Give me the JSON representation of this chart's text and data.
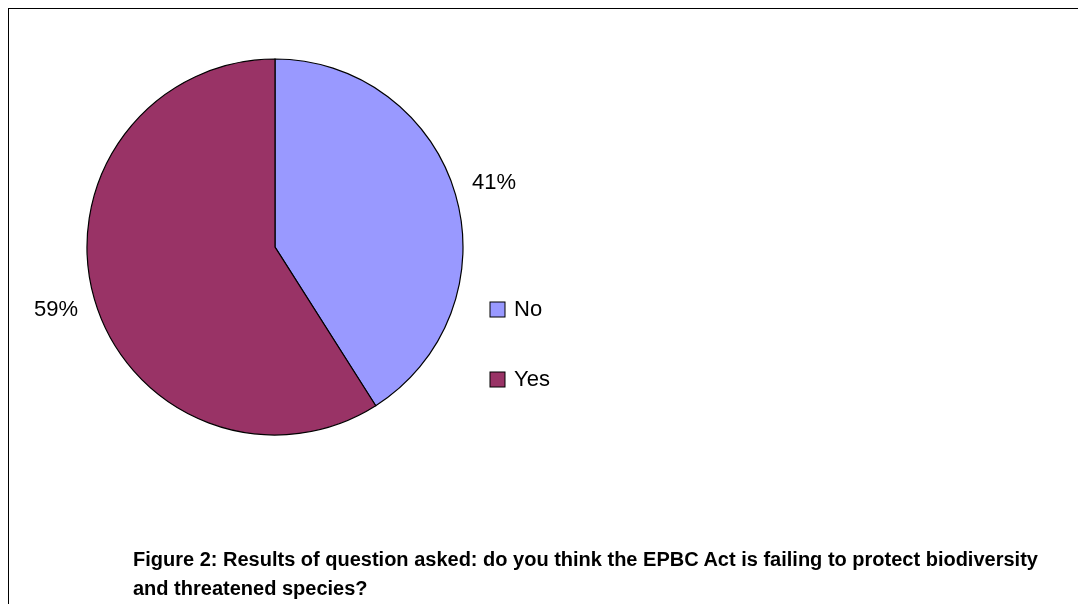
{
  "chart_data": {
    "type": "pie",
    "categories": [
      "No",
      "Yes"
    ],
    "values": [
      41,
      59
    ],
    "colors": [
      "#9999ff",
      "#993366"
    ],
    "value_labels": [
      "41%",
      "59%"
    ],
    "legend": "right",
    "annotations": [
      "Figure 2: Results of question asked: do you think the EPBC Act is failing to protect biodiversity and threatened species?"
    ]
  }
}
